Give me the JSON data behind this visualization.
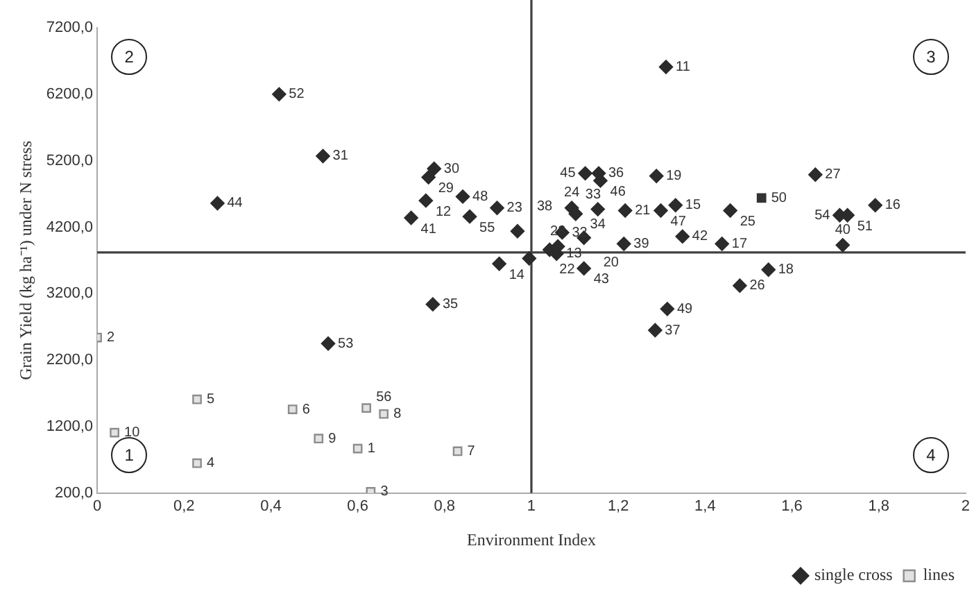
{
  "chart_data": {
    "type": "scatter",
    "xlabel": "Environment Index",
    "ylabel": "Grain Yield (kg ha⁻¹) under N stress",
    "xlim": [
      0,
      2
    ],
    "xticks": [
      0,
      {
        "value": 0.2,
        "label": "0,2"
      },
      {
        "value": 0.4,
        "label": "0,4"
      },
      {
        "value": 0.6,
        "label": "0,6"
      },
      {
        "value": 0.8,
        "label": "0,8"
      },
      1,
      {
        "value": 1.2,
        "label": "1,2"
      },
      {
        "value": 1.4,
        "label": "1,4"
      },
      {
        "value": 1.6,
        "label": "1,6"
      },
      {
        "value": 1.8,
        "label": "1,8"
      },
      2
    ],
    "ylim": [
      200,
      7200
    ],
    "yticks": [
      {
        "value": 200,
        "label": "200,0"
      },
      {
        "value": 1200,
        "label": "1200,0"
      },
      {
        "value": 2200,
        "label": "2200,0"
      },
      {
        "value": 3200,
        "label": "3200,0"
      },
      {
        "value": 4200,
        "label": "4200,0"
      },
      {
        "value": 5200,
        "label": "5200,0"
      },
      {
        "value": 6200,
        "label": "6200,0"
      },
      {
        "value": 7200,
        "label": "7200,0"
      }
    ],
    "grid": false,
    "legend": "bottom right",
    "ref_lines": [
      {
        "axis": "x",
        "value": 1,
        "color": "#404040"
      },
      {
        "axis": "y",
        "value": 3820,
        "color": "#404040"
      }
    ],
    "annotations": [
      "1",
      "2",
      "3",
      "4",
      {
        "text": "52",
        "x": 0.419,
        "y": 6200
      },
      {
        "text": "31",
        "x": 0.52,
        "y": 5270
      },
      {
        "text": "44",
        "x": 0.277,
        "y": 4560
      },
      {
        "text": "30",
        "x": 0.776,
        "y": 5080
      },
      {
        "text": "29",
        "x": 0.763,
        "y": 4950
      },
      {
        "text": "12",
        "x": 0.757,
        "y": 4600
      },
      {
        "text": "48",
        "x": 0.842,
        "y": 4660
      },
      {
        "text": "41",
        "x": 0.723,
        "y": 4340
      },
      {
        "text": "55",
        "x": 0.858,
        "y": 4360
      },
      {
        "text": "35",
        "x": 0.773,
        "y": 3040
      },
      {
        "text": "23",
        "x": 0.921,
        "y": 4490
      },
      {
        "text": "38",
        "x": 0.968,
        "y": 4140
      },
      {
        "text": "14",
        "x": 0.926,
        "y": 3650
      },
      {
        "text": "22",
        "x": 1.042,
        "y": 3860
      },
      {
        "text": "28",
        "x": 1.061,
        "y": 3910
      },
      {
        "text": "13",
        "x": 1.058,
        "y": 3800
      },
      {
        "text": "45",
        "x": 1.124,
        "y": 5010
      },
      {
        "text": "36",
        "x": 1.155,
        "y": 5010
      },
      {
        "text": "46",
        "x": 1.159,
        "y": 4900
      },
      {
        "text": "19",
        "x": 1.288,
        "y": 4970
      },
      {
        "text": "11",
        "x": 1.31,
        "y": 6610
      },
      {
        "text": "27",
        "x": 1.654,
        "y": 4990
      },
      {
        "text": "16",
        "x": 1.792,
        "y": 4530
      },
      {
        "text": "54",
        "x": 1.71,
        "y": 4380
      },
      {
        "text": "51",
        "x": 1.728,
        "y": 4380
      },
      {
        "text": "40",
        "x": 1.717,
        "y": 3930
      },
      {
        "text": "25",
        "x": 1.458,
        "y": 4450
      },
      {
        "text": "17",
        "x": 1.439,
        "y": 3950
      },
      {
        "text": "42",
        "x": 1.348,
        "y": 4060
      },
      {
        "text": "18",
        "x": 1.546,
        "y": 3560
      },
      {
        "text": "26",
        "x": 1.48,
        "y": 3320
      },
      {
        "text": "21",
        "x": 1.216,
        "y": 4450
      },
      {
        "text": "47",
        "x": 1.298,
        "y": 4450
      },
      {
        "text": "15",
        "x": 1.332,
        "y": 4530
      },
      {
        "text": "24",
        "x": 1.093,
        "y": 4490
      },
      {
        "text": "33",
        "x": 1.102,
        "y": 4400
      },
      {
        "text": "34",
        "x": 1.153,
        "y": 4470
      },
      {
        "text": "32",
        "x": 1.071,
        "y": 4120
      },
      {
        "text": "20",
        "x": 1.121,
        "y": 4040
      },
      {
        "text": "39",
        "x": 1.213,
        "y": 3950
      },
      {
        "text": "43",
        "x": 1.121,
        "y": 3580
      },
      {
        "text": "49",
        "x": 1.313,
        "y": 2970
      },
      {
        "text": "37",
        "x": 1.285,
        "y": 2650
      },
      {
        "text": "53",
        "x": 0.532,
        "y": 2450
      },
      {
        "text": "2",
        "x": 0,
        "y": 2540
      },
      {
        "text": "10",
        "x": 0.04,
        "y": 1110
      },
      {
        "text": "5",
        "x": 0.23,
        "y": 1610
      },
      {
        "text": "4",
        "x": 0.23,
        "y": 650
      },
      {
        "text": "6",
        "x": 0.45,
        "y": 1460
      },
      {
        "text": "56",
        "x": 0.62,
        "y": 1480
      },
      {
        "text": "8",
        "x": 0.66,
        "y": 1390
      },
      {
        "text": "9",
        "x": 0.51,
        "y": 1020
      },
      {
        "text": "1",
        "x": 0.6,
        "y": 870
      },
      {
        "text": "7",
        "x": 0.83,
        "y": 830
      },
      {
        "text": "3",
        "x": 0.63,
        "y": 220
      },
      {
        "text": "50",
        "x": 1.53,
        "y": 4640
      }
    ],
    "series": [
      {
        "name": "single cross",
        "color": "#2b2b2b",
        "marker": "diamond",
        "x": [
          0.419,
          0.52,
          0.277,
          0.776,
          0.763,
          0.757,
          0.842,
          0.723,
          0.858,
          0.773,
          0.921,
          0.968,
          0.926,
          0.995,
          1.042,
          1.061,
          1.058,
          1.124,
          1.155,
          1.159,
          1.288,
          1.31,
          1.654,
          1.792,
          1.71,
          1.728,
          1.717,
          1.458,
          1.439,
          1.348,
          1.546,
          1.48,
          1.216,
          1.298,
          1.332,
          1.093,
          1.102,
          1.153,
          1.071,
          1.121,
          1.213,
          1.121,
          1.313,
          1.285,
          0.532
        ],
        "values": [
          6200,
          5270,
          4560,
          5080,
          4950,
          4600,
          4660,
          4340,
          4360,
          3040,
          4490,
          4140,
          3650,
          3730,
          3860,
          3910,
          3800,
          5010,
          5010,
          4900,
          4970,
          6610,
          4990,
          4530,
          4380,
          4380,
          3930,
          4450,
          3950,
          4060,
          3560,
          3320,
          4450,
          4450,
          4530,
          4490,
          4400,
          4470,
          4120,
          4040,
          3950,
          3580,
          2970,
          2650,
          2450
        ]
      },
      {
        "name": "lines",
        "color": "#8c8c8c",
        "colors": [
          "#8c8c8c",
          "#8c8c8c",
          "#8c8c8c",
          "#8c8c8c",
          "#8c8c8c",
          "#8c8c8c",
          "#8c8c8c",
          "#8c8c8c",
          "#8c8c8c",
          "#8c8c8c",
          "#8c8c8c",
          "#333333"
        ],
        "marker": "square",
        "x": [
          0,
          0.04,
          0.23,
          0.23,
          0.45,
          0.62,
          0.66,
          0.51,
          0.6,
          0.83,
          0.63,
          1.53
        ],
        "values": [
          2540,
          1110,
          1610,
          650,
          1460,
          1480,
          1390,
          1020,
          870,
          830,
          220,
          4640
        ]
      }
    ]
  }
}
